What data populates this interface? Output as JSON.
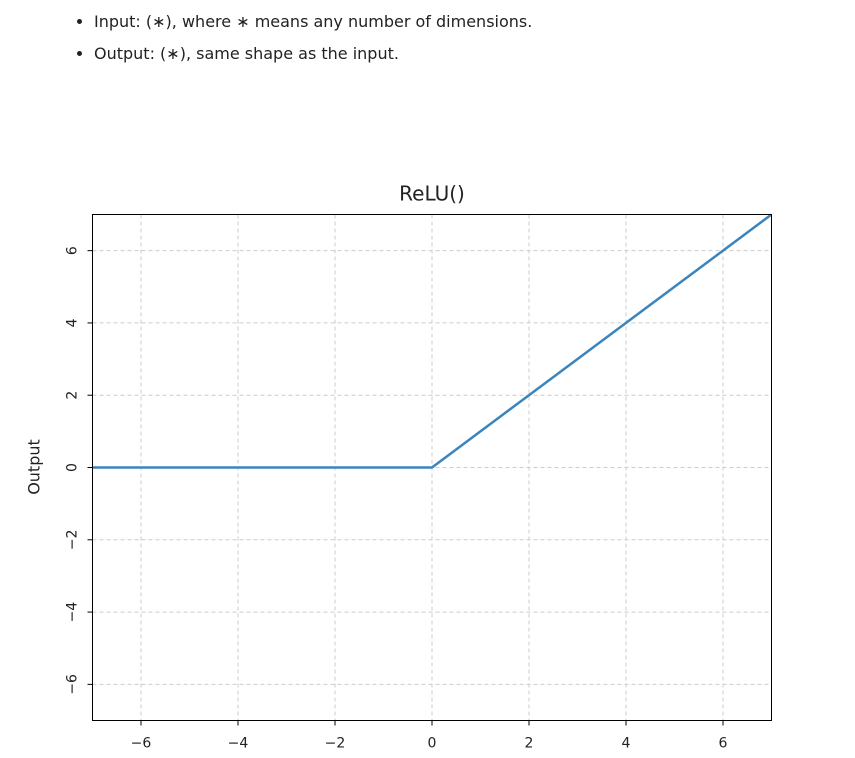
{
  "bullets": [
    "Input: (∗), where ∗ means any number of dimensions.",
    "Output: (∗), same shape as the input."
  ],
  "chart_data": {
    "type": "line",
    "title": "ReLU()",
    "y_label": "Output",
    "x": [
      -7,
      0,
      7
    ],
    "values": [
      0,
      0,
      7
    ],
    "color": "#3a85bd",
    "xlim": [
      -7,
      7
    ],
    "ylim": [
      -7,
      7
    ],
    "xticks": [
      {
        "value": -6,
        "label": "−6"
      },
      {
        "value": -4,
        "label": "−4"
      },
      {
        "value": -2,
        "label": "−2"
      },
      0,
      2,
      4,
      6
    ],
    "yticks": [
      {
        "value": -6,
        "label": "−6"
      },
      {
        "value": -4,
        "label": "−4"
      },
      {
        "value": -2,
        "label": "−2"
      },
      0,
      2,
      4,
      6
    ],
    "grid": true
  }
}
